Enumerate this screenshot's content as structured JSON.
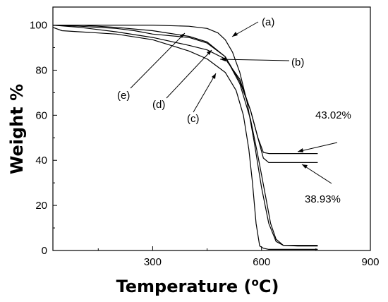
{
  "chart_data": {
    "type": "line",
    "xlabel": "Temperature (°C)",
    "xlabel_main": "Temperature (",
    "xlabel_unit": "o",
    "xlabel_end": "C)",
    "ylabel": "Weight %",
    "xlim": [
      25,
      900
    ],
    "ylim": [
      0,
      108
    ],
    "x_ticks": [
      300,
      600,
      900
    ],
    "y_ticks": [
      0,
      20,
      40,
      60,
      80,
      100
    ],
    "grid": false,
    "line_color": "#000000",
    "series": [
      {
        "label": "(a)",
        "x": [
          25,
          100,
          200,
          300,
          400,
          450,
          480,
          500,
          520,
          540,
          560,
          580,
          600,
          620,
          640,
          660,
          700,
          755
        ],
        "y": [
          100,
          100,
          100,
          100,
          99.5,
          98.5,
          96.5,
          93.5,
          88,
          79,
          66,
          48,
          28,
          12,
          4,
          2.3,
          2,
          2
        ]
      },
      {
        "label": "(b)",
        "x": [
          25,
          100,
          200,
          300,
          400,
          450,
          500,
          540,
          570,
          590,
          605,
          620,
          640,
          680,
          755
        ],
        "y": [
          100,
          100,
          99,
          97.5,
          95,
          92.5,
          86,
          75,
          62,
          50,
          43.5,
          43,
          43,
          43,
          43
        ]
      },
      {
        "label": "(c)",
        "x": [
          25,
          50,
          100,
          200,
          300,
          400,
          450,
          500,
          530,
          550,
          565,
          575,
          585,
          595,
          605,
          620,
          700,
          755
        ],
        "y": [
          99,
          97.5,
          97,
          96,
          93.5,
          88.5,
          85,
          79,
          71,
          60,
          45,
          30,
          12,
          2,
          1,
          0.5,
          0.5,
          0.5
        ]
      },
      {
        "label": "(d)",
        "x": [
          25,
          100,
          200,
          300,
          400,
          450,
          500,
          540,
          570,
          590,
          605,
          620,
          640,
          700,
          755
        ],
        "y": [
          100,
          99,
          97,
          94.5,
          91,
          89,
          85,
          76,
          62,
          50,
          41,
          39,
          39,
          39,
          39
        ]
      },
      {
        "label": "(e)",
        "x": [
          25,
          100,
          200,
          250,
          300,
          400,
          450,
          500,
          540,
          570,
          590,
          610,
          625,
          640,
          660,
          700,
          755
        ],
        "y": [
          100,
          99.5,
          98.5,
          97.5,
          96,
          94.5,
          92,
          86,
          74,
          58,
          42,
          25,
          12,
          5,
          2.3,
          2.3,
          2.3
        ]
      }
    ],
    "annotations": [
      {
        "text": "(a)",
        "pos": "upper right of curves"
      },
      {
        "text": "(b)",
        "pos": "right"
      },
      {
        "text": "(c)",
        "pos": "center-bottom"
      },
      {
        "text": "(d)",
        "pos": "center"
      },
      {
        "text": "(e)",
        "pos": "left"
      },
      {
        "text": "43.02%",
        "pos": "right, upper plateau"
      },
      {
        "text": "38.93%",
        "pos": "right, lower plateau"
      }
    ]
  }
}
